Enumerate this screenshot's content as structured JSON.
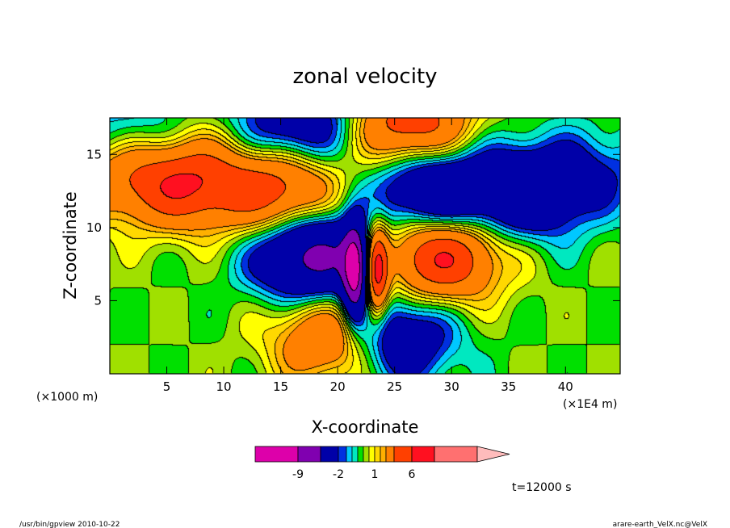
{
  "chart_data": {
    "type": "heatmap",
    "title": "zonal velocity",
    "xlabel": "X-coordinate",
    "ylabel": "Z-coordinate",
    "x_unit": "(×1E4 m)",
    "y_unit": "(×1000 m)",
    "xlim": [
      0,
      44.8
    ],
    "ylim": [
      0,
      17.5
    ],
    "x_ticks": [
      "5",
      "10",
      "15",
      "20",
      "25",
      "30",
      "35",
      "40"
    ],
    "y_ticks": [
      "5",
      "10",
      "15"
    ],
    "x_tick_values": [
      5,
      10,
      15,
      20,
      25,
      30,
      35,
      40
    ],
    "y_tick_values": [
      5,
      10,
      15
    ],
    "time_label": "t=12000 s",
    "colorbar": {
      "levels": [
        -12,
        -9,
        -6,
        -2,
        -1.5,
        -1,
        -0.5,
        0,
        0.5,
        1,
        1.5,
        2,
        4,
        6,
        9,
        12
      ],
      "colors": [
        "#dd00aa",
        "#8000b0",
        "#0000a8",
        "#0030e0",
        "#00c8ff",
        "#00e8c0",
        "#00e000",
        "#a0e000",
        "#ffff00",
        "#ffd800",
        "#ffb000",
        "#ff8000",
        "#ff4000",
        "#ff1020",
        "#ff7070",
        "#ffbcbc"
      ],
      "tick_labels": [
        "-9",
        "-2",
        "1",
        "6"
      ],
      "tick_values": [
        -9,
        -2,
        1,
        6
      ]
    },
    "features": [
      {
        "x": 18.0,
        "z": 8.0,
        "u": -7.0
      },
      {
        "x": 28.5,
        "z": 12.5,
        "u": -5.5
      },
      {
        "x": 37.0,
        "z": 12.5,
        "u": -5.0
      },
      {
        "x": 16.5,
        "z": 17.0,
        "u": -4.0
      },
      {
        "x": 1.5,
        "z": 16.5,
        "u": -2.0
      },
      {
        "x": 43.5,
        "z": 14.0,
        "u": -1.5
      },
      {
        "x": 7.0,
        "z": 13.0,
        "u": 5.5
      },
      {
        "x": 15.0,
        "z": 12.5,
        "u": 5.0
      },
      {
        "x": 29.0,
        "z": 8.0,
        "u": 6.5
      },
      {
        "x": 26.5,
        "z": 17.0,
        "u": 5.5
      },
      {
        "x": 20.0,
        "z": 2.5,
        "u": 5.5
      },
      {
        "x": 24.5,
        "z": 2.5,
        "u": -5.5
      },
      {
        "x": 21.5,
        "z": 7.0,
        "u": -9.0
      },
      {
        "x": 23.5,
        "z": 7.0,
        "u": 7.0
      },
      {
        "x": 0.8,
        "z": 13.5,
        "u": 3.0
      }
    ]
  },
  "footer": {
    "left": "/usr/bin/gpview   2010-10-22",
    "right": "arare-earth_VelX.nc@VelX"
  }
}
